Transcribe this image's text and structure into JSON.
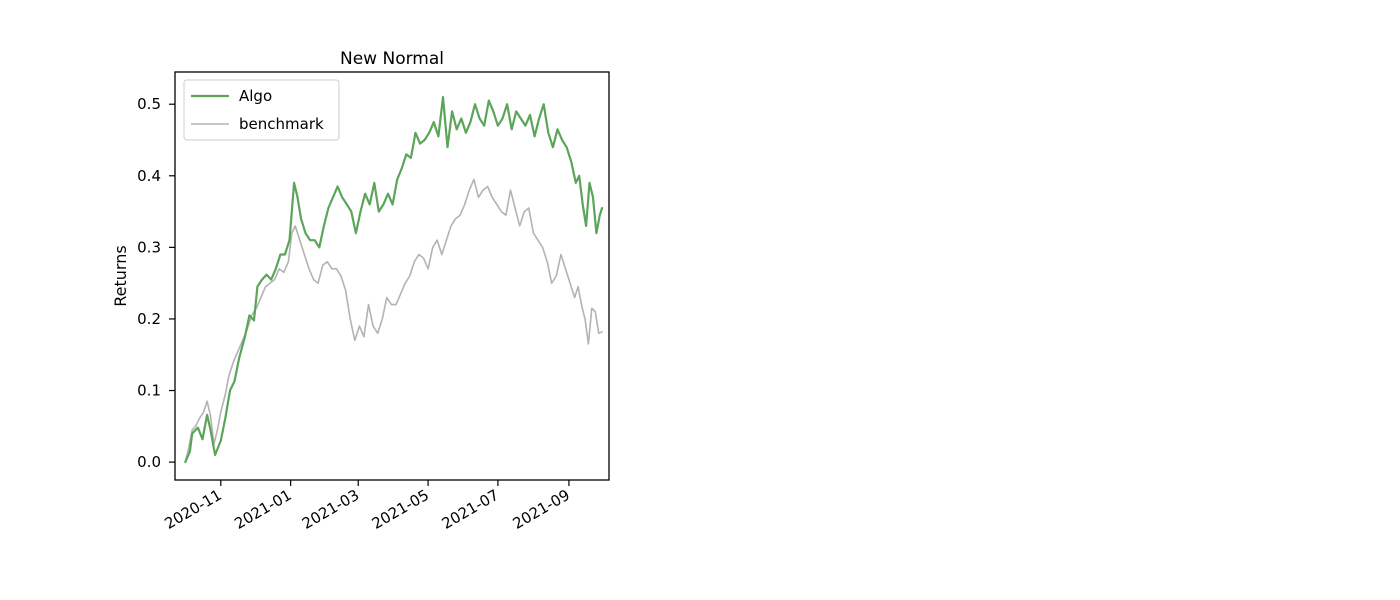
{
  "chart_data": {
    "type": "line",
    "title": "New Normal",
    "xlabel": "",
    "ylabel": "Returns",
    "ylim": [
      -0.025,
      0.545
    ],
    "xlim": [
      "2020-09-22",
      "2021-10-06"
    ],
    "yticks": [
      {
        "value": 0.0,
        "label": "0.0"
      },
      {
        "value": 0.1,
        "label": "0.1"
      },
      {
        "value": 0.2,
        "label": "0.2"
      },
      {
        "value": 0.3,
        "label": "0.3"
      },
      {
        "value": 0.4,
        "label": "0.4"
      },
      {
        "value": 0.5,
        "label": "0.5"
      }
    ],
    "xticks": [
      {
        "value": "2020-11-01",
        "label": "2020-11"
      },
      {
        "value": "2021-01-01",
        "label": "2021-01"
      },
      {
        "value": "2021-03-01",
        "label": "2021-03"
      },
      {
        "value": "2021-05-01",
        "label": "2021-05"
      },
      {
        "value": "2021-07-01",
        "label": "2021-07"
      },
      {
        "value": "2021-09-01",
        "label": "2021-09"
      }
    ],
    "legend_position": "upper-left",
    "grid": false,
    "series": [
      {
        "name": "Algo",
        "color": "#5aa55a",
        "points": [
          [
            "2020-10-01",
            0.0
          ],
          [
            "2020-10-05",
            0.015
          ],
          [
            "2020-10-07",
            0.04
          ],
          [
            "2020-10-12",
            0.048
          ],
          [
            "2020-10-16",
            0.032
          ],
          [
            "2020-10-20",
            0.066
          ],
          [
            "2020-10-23",
            0.045
          ],
          [
            "2020-10-27",
            0.01
          ],
          [
            "2020-11-01",
            0.03
          ],
          [
            "2020-11-05",
            0.062
          ],
          [
            "2020-11-09",
            0.1
          ],
          [
            "2020-11-13",
            0.113
          ],
          [
            "2020-11-17",
            0.145
          ],
          [
            "2020-11-22",
            0.175
          ],
          [
            "2020-11-26",
            0.205
          ],
          [
            "2020-11-30",
            0.198
          ],
          [
            "2020-12-03",
            0.245
          ],
          [
            "2020-12-07",
            0.255
          ],
          [
            "2020-12-11",
            0.262
          ],
          [
            "2020-12-15",
            0.255
          ],
          [
            "2020-12-19",
            0.27
          ],
          [
            "2020-12-23",
            0.29
          ],
          [
            "2020-12-27",
            0.29
          ],
          [
            "2020-12-31",
            0.31
          ],
          [
            "2021-01-04",
            0.39
          ],
          [
            "2021-01-07",
            0.37
          ],
          [
            "2021-01-10",
            0.34
          ],
          [
            "2021-01-14",
            0.32
          ],
          [
            "2021-01-18",
            0.31
          ],
          [
            "2021-01-22",
            0.31
          ],
          [
            "2021-01-26",
            0.3
          ],
          [
            "2021-01-30",
            0.33
          ],
          [
            "2021-02-03",
            0.355
          ],
          [
            "2021-02-07",
            0.37
          ],
          [
            "2021-02-11",
            0.385
          ],
          [
            "2021-02-15",
            0.37
          ],
          [
            "2021-02-19",
            0.36
          ],
          [
            "2021-02-23",
            0.35
          ],
          [
            "2021-02-27",
            0.32
          ],
          [
            "2021-03-03",
            0.35
          ],
          [
            "2021-03-07",
            0.375
          ],
          [
            "2021-03-11",
            0.36
          ],
          [
            "2021-03-15",
            0.39
          ],
          [
            "2021-03-19",
            0.35
          ],
          [
            "2021-03-23",
            0.36
          ],
          [
            "2021-03-27",
            0.375
          ],
          [
            "2021-03-31",
            0.36
          ],
          [
            "2021-04-04",
            0.395
          ],
          [
            "2021-04-08",
            0.41
          ],
          [
            "2021-04-12",
            0.43
          ],
          [
            "2021-04-16",
            0.425
          ],
          [
            "2021-04-20",
            0.46
          ],
          [
            "2021-04-24",
            0.445
          ],
          [
            "2021-04-28",
            0.45
          ],
          [
            "2021-05-02",
            0.46
          ],
          [
            "2021-05-06",
            0.475
          ],
          [
            "2021-05-10",
            0.455
          ],
          [
            "2021-05-14",
            0.51
          ],
          [
            "2021-05-18",
            0.44
          ],
          [
            "2021-05-22",
            0.49
          ],
          [
            "2021-05-26",
            0.465
          ],
          [
            "2021-05-30",
            0.48
          ],
          [
            "2021-06-03",
            0.46
          ],
          [
            "2021-06-07",
            0.475
          ],
          [
            "2021-06-11",
            0.5
          ],
          [
            "2021-06-15",
            0.48
          ],
          [
            "2021-06-19",
            0.47
          ],
          [
            "2021-06-23",
            0.505
          ],
          [
            "2021-06-27",
            0.49
          ],
          [
            "2021-07-01",
            0.47
          ],
          [
            "2021-07-05",
            0.48
          ],
          [
            "2021-07-09",
            0.5
          ],
          [
            "2021-07-13",
            0.465
          ],
          [
            "2021-07-17",
            0.49
          ],
          [
            "2021-07-21",
            0.48
          ],
          [
            "2021-07-25",
            0.47
          ],
          [
            "2021-07-29",
            0.485
          ],
          [
            "2021-08-02",
            0.455
          ],
          [
            "2021-08-06",
            0.48
          ],
          [
            "2021-08-10",
            0.5
          ],
          [
            "2021-08-14",
            0.46
          ],
          [
            "2021-08-18",
            0.44
          ],
          [
            "2021-08-22",
            0.465
          ],
          [
            "2021-08-26",
            0.45
          ],
          [
            "2021-08-30",
            0.44
          ],
          [
            "2021-09-03",
            0.42
          ],
          [
            "2021-09-07",
            0.39
          ],
          [
            "2021-09-10",
            0.4
          ],
          [
            "2021-09-13",
            0.36
          ],
          [
            "2021-09-16",
            0.33
          ],
          [
            "2021-09-19",
            0.39
          ],
          [
            "2021-09-22",
            0.37
          ],
          [
            "2021-09-25",
            0.32
          ],
          [
            "2021-09-28",
            0.345
          ],
          [
            "2021-09-30",
            0.355
          ]
        ]
      },
      {
        "name": "benchmark",
        "color": "#b3b3b3",
        "points": [
          [
            "2020-10-01",
            0.0
          ],
          [
            "2020-10-04",
            0.02
          ],
          [
            "2020-10-07",
            0.045
          ],
          [
            "2020-10-10",
            0.05
          ],
          [
            "2020-10-13",
            0.06
          ],
          [
            "2020-10-17",
            0.07
          ],
          [
            "2020-10-20",
            0.085
          ],
          [
            "2020-10-23",
            0.065
          ],
          [
            "2020-10-26",
            0.025
          ],
          [
            "2020-10-29",
            0.045
          ],
          [
            "2020-11-01",
            0.07
          ],
          [
            "2020-11-05",
            0.095
          ],
          [
            "2020-11-08",
            0.12
          ],
          [
            "2020-11-12",
            0.14
          ],
          [
            "2020-11-16",
            0.155
          ],
          [
            "2020-11-20",
            0.17
          ],
          [
            "2020-11-24",
            0.185
          ],
          [
            "2020-11-28",
            0.205
          ],
          [
            "2020-12-02",
            0.215
          ],
          [
            "2020-12-06",
            0.23
          ],
          [
            "2020-12-10",
            0.245
          ],
          [
            "2020-12-14",
            0.25
          ],
          [
            "2020-12-18",
            0.255
          ],
          [
            "2020-12-22",
            0.27
          ],
          [
            "2020-12-26",
            0.265
          ],
          [
            "2020-12-30",
            0.28
          ],
          [
            "2021-01-02",
            0.32
          ],
          [
            "2021-01-05",
            0.33
          ],
          [
            "2021-01-09",
            0.31
          ],
          [
            "2021-01-13",
            0.29
          ],
          [
            "2021-01-17",
            0.27
          ],
          [
            "2021-01-21",
            0.255
          ],
          [
            "2021-01-25",
            0.25
          ],
          [
            "2021-01-29",
            0.275
          ],
          [
            "2021-02-02",
            0.28
          ],
          [
            "2021-02-06",
            0.27
          ],
          [
            "2021-02-10",
            0.27
          ],
          [
            "2021-02-14",
            0.26
          ],
          [
            "2021-02-18",
            0.24
          ],
          [
            "2021-02-22",
            0.2
          ],
          [
            "2021-02-26",
            0.17
          ],
          [
            "2021-03-02",
            0.19
          ],
          [
            "2021-03-06",
            0.175
          ],
          [
            "2021-03-10",
            0.22
          ],
          [
            "2021-03-14",
            0.19
          ],
          [
            "2021-03-18",
            0.18
          ],
          [
            "2021-03-22",
            0.2
          ],
          [
            "2021-03-26",
            0.23
          ],
          [
            "2021-03-30",
            0.22
          ],
          [
            "2021-04-03",
            0.22
          ],
          [
            "2021-04-07",
            0.235
          ],
          [
            "2021-04-11",
            0.25
          ],
          [
            "2021-04-15",
            0.26
          ],
          [
            "2021-04-19",
            0.28
          ],
          [
            "2021-04-23",
            0.29
          ],
          [
            "2021-04-27",
            0.285
          ],
          [
            "2021-05-01",
            0.27
          ],
          [
            "2021-05-05",
            0.3
          ],
          [
            "2021-05-09",
            0.31
          ],
          [
            "2021-05-13",
            0.29
          ],
          [
            "2021-05-17",
            0.31
          ],
          [
            "2021-05-21",
            0.33
          ],
          [
            "2021-05-25",
            0.34
          ],
          [
            "2021-05-29",
            0.345
          ],
          [
            "2021-06-02",
            0.36
          ],
          [
            "2021-06-06",
            0.38
          ],
          [
            "2021-06-10",
            0.395
          ],
          [
            "2021-06-14",
            0.37
          ],
          [
            "2021-06-18",
            0.38
          ],
          [
            "2021-06-22",
            0.385
          ],
          [
            "2021-06-26",
            0.37
          ],
          [
            "2021-06-30",
            0.36
          ],
          [
            "2021-07-04",
            0.35
          ],
          [
            "2021-07-08",
            0.345
          ],
          [
            "2021-07-12",
            0.38
          ],
          [
            "2021-07-16",
            0.355
          ],
          [
            "2021-07-20",
            0.33
          ],
          [
            "2021-07-24",
            0.35
          ],
          [
            "2021-07-28",
            0.355
          ],
          [
            "2021-08-01",
            0.32
          ],
          [
            "2021-08-05",
            0.31
          ],
          [
            "2021-08-09",
            0.3
          ],
          [
            "2021-08-13",
            0.28
          ],
          [
            "2021-08-17",
            0.25
          ],
          [
            "2021-08-21",
            0.26
          ],
          [
            "2021-08-25",
            0.29
          ],
          [
            "2021-08-29",
            0.27
          ],
          [
            "2021-09-02",
            0.25
          ],
          [
            "2021-09-06",
            0.23
          ],
          [
            "2021-09-09",
            0.245
          ],
          [
            "2021-09-12",
            0.22
          ],
          [
            "2021-09-15",
            0.2
          ],
          [
            "2021-09-18",
            0.165
          ],
          [
            "2021-09-21",
            0.215
          ],
          [
            "2021-09-24",
            0.21
          ],
          [
            "2021-09-27",
            0.18
          ],
          [
            "2021-09-30",
            0.182
          ]
        ]
      }
    ]
  }
}
